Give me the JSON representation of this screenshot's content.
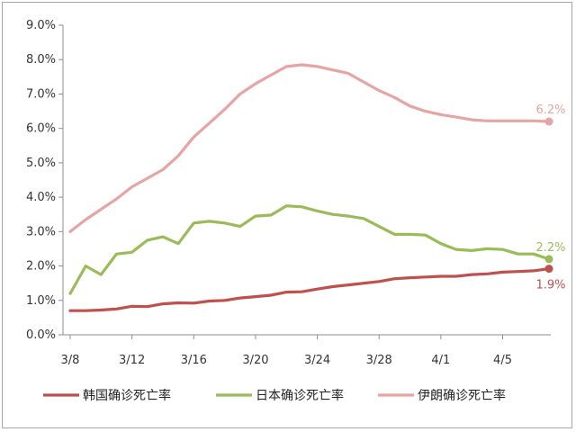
{
  "chart_data": {
    "type": "line",
    "title": "",
    "xlabel": "",
    "ylabel": "",
    "ylim": [
      0,
      9
    ],
    "y_ticks": [
      "0.0%",
      "1.0%",
      "2.0%",
      "3.0%",
      "4.0%",
      "5.0%",
      "6.0%",
      "7.0%",
      "8.0%",
      "9.0%"
    ],
    "x": [
      "3/8",
      "3/9",
      "3/10",
      "3/11",
      "3/12",
      "3/13",
      "3/14",
      "3/15",
      "3/16",
      "3/17",
      "3/18",
      "3/19",
      "3/20",
      "3/21",
      "3/22",
      "3/23",
      "3/24",
      "3/25",
      "3/26",
      "3/27",
      "3/28",
      "3/29",
      "3/30",
      "3/31",
      "4/1",
      "4/2",
      "4/3",
      "4/4",
      "4/5",
      "4/6",
      "4/7",
      "4/8"
    ],
    "x_tick_labels": [
      "3/8",
      "3/12",
      "3/16",
      "3/20",
      "3/24",
      "3/28",
      "4/1",
      "4/5"
    ],
    "grid": false,
    "legend_position": "bottom",
    "series": [
      {
        "name": "韩国确诊死亡率",
        "color": "#c0504d",
        "end_label": "1.9%",
        "values": [
          0.7,
          0.7,
          0.72,
          0.75,
          0.83,
          0.82,
          0.9,
          0.93,
          0.92,
          0.98,
          1.0,
          1.07,
          1.11,
          1.15,
          1.24,
          1.25,
          1.33,
          1.4,
          1.45,
          1.5,
          1.55,
          1.63,
          1.66,
          1.68,
          1.7,
          1.7,
          1.75,
          1.77,
          1.82,
          1.84,
          1.86,
          1.92
        ]
      },
      {
        "name": "日本确诊死亡率",
        "color": "#9bbb59",
        "end_label": "2.2%",
        "values": [
          1.2,
          2.0,
          1.75,
          2.35,
          2.4,
          2.75,
          2.85,
          2.65,
          3.25,
          3.3,
          3.25,
          3.15,
          3.45,
          3.48,
          3.75,
          3.72,
          3.6,
          3.5,
          3.45,
          3.38,
          3.15,
          2.92,
          2.92,
          2.9,
          2.65,
          2.48,
          2.45,
          2.5,
          2.48,
          2.35,
          2.35,
          2.2
        ]
      },
      {
        "name": "伊朗确诊死亡率",
        "color": "#e6a5a5",
        "end_label": "6.2%",
        "values": [
          3.0,
          3.35,
          3.65,
          3.95,
          4.3,
          4.55,
          4.8,
          5.2,
          5.75,
          6.15,
          6.55,
          7.0,
          7.3,
          7.55,
          7.8,
          7.85,
          7.8,
          7.7,
          7.6,
          7.35,
          7.1,
          6.9,
          6.65,
          6.5,
          6.4,
          6.33,
          6.25,
          6.22,
          6.22,
          6.22,
          6.22,
          6.2
        ]
      }
    ]
  }
}
